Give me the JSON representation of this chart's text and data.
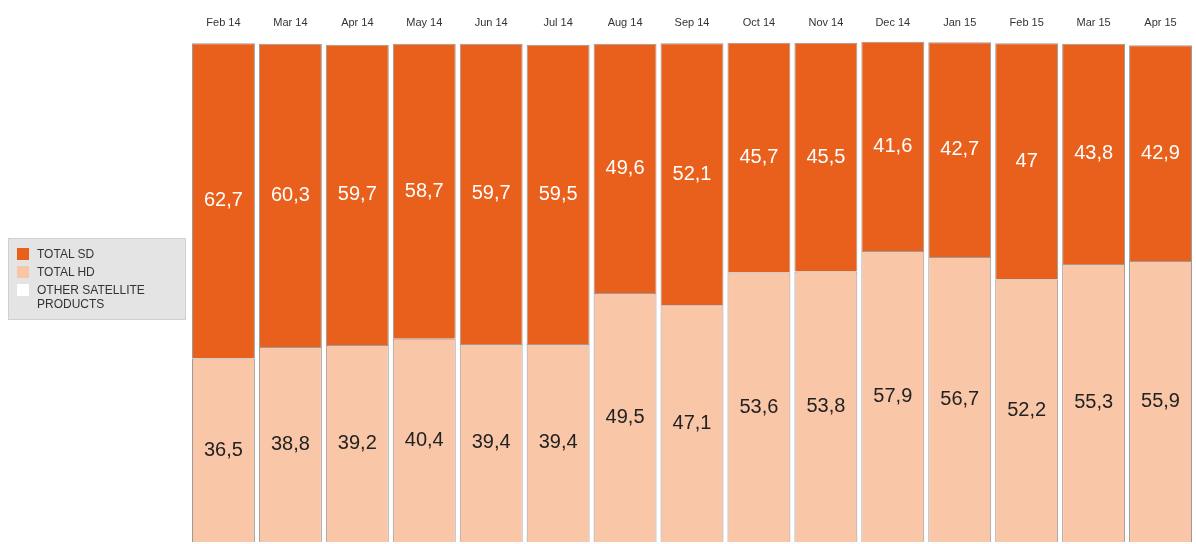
{
  "chart_data": {
    "type": "bar",
    "stacked": true,
    "categories": [
      "Feb 14",
      "Mar 14",
      "Apr 14",
      "May 14",
      "Jun 14",
      "Jul 14",
      "Aug 14",
      "Sep 14",
      "Oct 14",
      "Nov 14",
      "Dec 14",
      "Jan 15",
      "Feb 15",
      "Mar 15",
      "Apr 15"
    ],
    "ylim": [
      0,
      100
    ],
    "tick_labels": "x",
    "grid": false,
    "legend": "left",
    "series": [
      {
        "name": "OTHER SATELLITE PRODUCTS",
        "color": "#ffffff",
        "values": [
          null,
          null,
          null,
          null,
          null,
          null,
          null,
          null,
          null,
          null,
          null,
          null,
          null,
          null,
          null
        ]
      },
      {
        "name": "TOTAL HD",
        "color": "#f9c7a8",
        "values": [
          36.5,
          38.8,
          39.2,
          40.4,
          39.4,
          39.4,
          49.5,
          47.1,
          53.6,
          53.8,
          57.9,
          56.7,
          52.2,
          55.3,
          55.9
        ],
        "value_labels": [
          "36,5",
          "38,8",
          "39,2",
          "40,4",
          "39,4",
          "39,4",
          "49,5",
          "47,1",
          "53,6",
          "53,8",
          "57,9",
          "56,7",
          "52,2",
          "55,3",
          "55,9"
        ]
      },
      {
        "name": "TOTAL SD",
        "color": "#e8601c",
        "values": [
          62.7,
          60.3,
          59.7,
          58.7,
          59.7,
          59.5,
          49.6,
          52.1,
          45.7,
          45.5,
          41.6,
          42.7,
          47,
          43.8,
          42.9
        ],
        "value_labels": [
          "62,7",
          "60,3",
          "59,7",
          "58,7",
          "59,7",
          "59,5",
          "49,6",
          "52,1",
          "45,7",
          "45,5",
          "41,6",
          "42,7",
          "47",
          "43,8",
          "42,9"
        ]
      }
    ]
  }
}
